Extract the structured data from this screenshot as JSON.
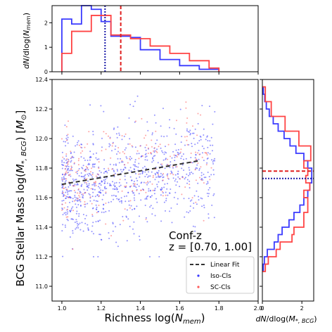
{
  "chart_data": {
    "type": "scatter",
    "annotation": {
      "line1": "Conf-z",
      "line2": "z = [0.70, 1.00]"
    },
    "main": {
      "xlabel": "Richness log(N_mem)",
      "ylabel": "BCG Stellar Mass log(M_*,BCG) [M_⊙]",
      "xlim": [
        0.95,
        2.0
      ],
      "ylim": [
        10.9,
        12.4
      ],
      "xticks": [
        "1.0",
        "1.2",
        "1.4",
        "1.6",
        "1.8",
        "2.0"
      ],
      "yticks": [
        "11.0",
        "11.2",
        "11.4",
        "11.6",
        "11.8",
        "12.0",
        "12.2",
        "12.4"
      ],
      "legend": {
        "placement": "lower-right",
        "entries": [
          "Linear Fit",
          "Iso-Cls",
          "SC-Cls"
        ]
      },
      "fit_line": {
        "x": [
          1.0,
          1.7
        ],
        "y": [
          11.69,
          11.85
        ]
      },
      "series": [
        {
          "name": "Iso-Cls",
          "color": "#3a3aff",
          "n": 900,
          "x_min": 1.0,
          "x_max": 1.78,
          "y_mean": 11.73,
          "y_sd": 0.17
        },
        {
          "name": "SC-Cls",
          "color": "#ff5a5a",
          "n": 240,
          "x_min": 1.0,
          "x_max": 1.78,
          "y_mean": 11.78,
          "y_sd": 0.16
        }
      ]
    },
    "top_hist": {
      "ylabel": "dN/dlog(N_mem)",
      "ylim": [
        0,
        2.7
      ],
      "yticks": [
        "0",
        "1",
        "2"
      ],
      "bins": [
        1.0,
        1.05,
        1.1,
        1.15,
        1.2,
        1.25,
        1.3,
        1.35,
        1.4,
        1.45,
        1.5,
        1.55,
        1.6,
        1.65,
        1.7,
        1.75,
        1.8
      ],
      "iso": [
        2.15,
        1.95,
        2.7,
        2.55,
        2.05,
        1.45,
        1.45,
        1.4,
        0.9,
        0.9,
        0.5,
        0.5,
        0.25,
        0.25,
        0.1,
        0.1
      ],
      "sc": [
        0.75,
        1.65,
        1.65,
        2.3,
        2.3,
        1.5,
        1.5,
        1.35,
        1.35,
        1.05,
        1.05,
        0.75,
        0.75,
        0.45,
        0.45,
        0.15
      ],
      "iso_median": 1.22,
      "sc_median": 1.3
    },
    "right_hist": {
      "xlabel": "dN/dlog(M_*,BCG)",
      "xlim": [
        0,
        2.6
      ],
      "xticks": [
        "0",
        "2"
      ],
      "bins": [
        11.1,
        11.15,
        11.2,
        11.25,
        11.3,
        11.35,
        11.4,
        11.45,
        11.5,
        11.55,
        11.6,
        11.65,
        11.7,
        11.75,
        11.8,
        11.85,
        11.9,
        11.95,
        12.0,
        12.05,
        12.1,
        12.15,
        12.2,
        12.25,
        12.3,
        12.35
      ],
      "iso": [
        0.05,
        0.1,
        0.25,
        0.6,
        0.8,
        1.0,
        1.35,
        1.6,
        1.9,
        2.1,
        2.3,
        2.4,
        2.5,
        2.5,
        2.3,
        2.1,
        1.7,
        1.4,
        1.1,
        0.8,
        0.55,
        0.35,
        0.2,
        0.12,
        0.05
      ],
      "sc": [
        0.15,
        0.3,
        0.7,
        0.9,
        1.5,
        1.6,
        2.1,
        2.1,
        2.3,
        2.3,
        2.1,
        2.4,
        2.2,
        2.3,
        2.1,
        2.45,
        2.45,
        1.85,
        1.85,
        1.15,
        1.15,
        0.45,
        0.45,
        0.15,
        0.15
      ],
      "iso_median": 11.73,
      "sc_median": 11.78
    }
  }
}
